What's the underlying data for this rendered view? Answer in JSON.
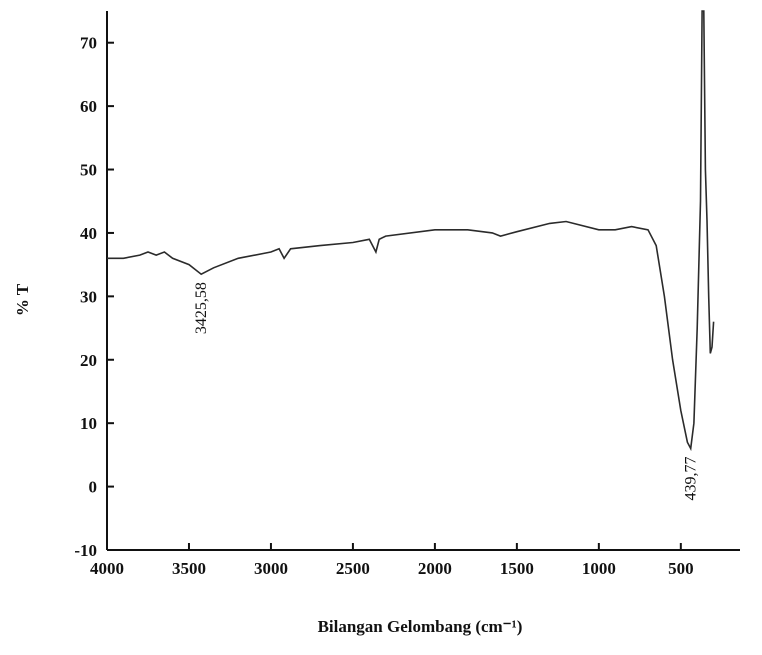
{
  "chart_data": {
    "type": "line",
    "x_label": "Bilangan Gelombang (cm⁻¹)",
    "y_label": "% T",
    "xlim": [
      4000,
      200
    ],
    "ylim": [
      -10,
      75
    ],
    "xticks": [
      4000,
      3500,
      3000,
      2500,
      2000,
      1500,
      1000,
      500
    ],
    "yticks": [
      -10,
      0,
      10,
      20,
      30,
      40,
      50,
      60,
      70
    ],
    "x_reversed": true,
    "series": [
      {
        "color": "#2b2b2b",
        "x": [
          4000,
          3900,
          3800,
          3750,
          3700,
          3650,
          3600,
          3500,
          3425.58,
          3350,
          3200,
          3000,
          2950,
          2920,
          2880,
          2700,
          2500,
          2400,
          2360,
          2340,
          2300,
          2000,
          1800,
          1650,
          1600,
          1500,
          1300,
          1200,
          1000,
          900,
          800,
          700,
          650,
          600,
          550,
          500,
          460,
          439.77,
          420,
          400,
          380,
          370,
          360,
          350,
          340,
          330,
          320,
          310,
          300
        ],
        "values": [
          36,
          36,
          36.5,
          37,
          36.5,
          37,
          36,
          35,
          33.5,
          34.5,
          36,
          37,
          37.5,
          36,
          37.5,
          38,
          38.5,
          39,
          37,
          39,
          39.5,
          40.5,
          40.5,
          40,
          39.5,
          40.2,
          41.5,
          41.8,
          40.5,
          40.5,
          41,
          40.5,
          38,
          30,
          20,
          12,
          7,
          6,
          10,
          25,
          45,
          75,
          75,
          50,
          42,
          30,
          21,
          22,
          26
        ]
      }
    ],
    "annotations": [
      {
        "x": 3425.58,
        "y": 33.5,
        "label": "3425,58"
      },
      {
        "x": 439.77,
        "y": 6,
        "label": "439,77"
      }
    ]
  }
}
